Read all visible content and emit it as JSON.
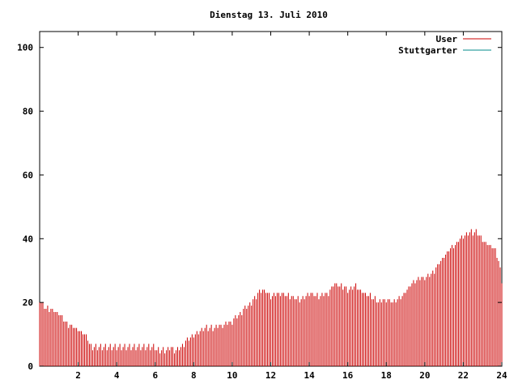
{
  "chart_data": {
    "type": "bar",
    "title": "Dienstag 13. Juli 2010",
    "xlabel": "",
    "ylabel": "",
    "xlim": [
      0,
      24
    ],
    "ylim": [
      0,
      105
    ],
    "x_ticks": [
      2,
      4,
      6,
      8,
      10,
      12,
      14,
      16,
      18,
      20,
      22,
      24
    ],
    "x_tick_labels": [
      "2",
      "4",
      "6",
      "8",
      "10",
      "12",
      "14",
      "16",
      "18",
      "20",
      "22",
      "24"
    ],
    "y_ticks": [
      0,
      20,
      40,
      60,
      80,
      100
    ],
    "y_tick_labels": [
      "0",
      "20",
      "40",
      "60",
      "80",
      "100"
    ],
    "grid": false,
    "legend_position": "top-right",
    "series": [
      {
        "name": "User",
        "color": "#cc0000",
        "profile": [
          [
            0.0,
            21
          ],
          [
            0.3,
            18
          ],
          [
            0.6,
            18
          ],
          [
            0.9,
            17
          ],
          [
            1.2,
            15
          ],
          [
            1.5,
            13
          ],
          [
            1.8,
            12
          ],
          [
            2.1,
            11
          ],
          [
            2.3,
            10
          ],
          [
            2.5,
            9
          ],
          [
            2.65,
            6
          ],
          [
            6.0,
            6
          ],
          [
            6.1,
            5
          ],
          [
            6.6,
            5
          ],
          [
            6.8,
            6
          ],
          [
            7.0,
            5
          ],
          [
            7.3,
            6
          ],
          [
            7.5,
            7
          ],
          [
            7.8,
            9
          ],
          [
            8.0,
            10
          ],
          [
            8.3,
            11
          ],
          [
            8.7,
            12
          ],
          [
            9.0,
            12
          ],
          [
            9.5,
            13
          ],
          [
            10.0,
            14
          ],
          [
            10.5,
            17
          ],
          [
            11.0,
            20
          ],
          [
            11.5,
            24
          ],
          [
            11.8,
            23
          ],
          [
            12.0,
            22
          ],
          [
            12.5,
            23
          ],
          [
            13.0,
            22
          ],
          [
            13.5,
            21
          ],
          [
            14.0,
            23
          ],
          [
            14.5,
            22
          ],
          [
            15.0,
            23
          ],
          [
            15.3,
            26
          ],
          [
            15.7,
            25
          ],
          [
            16.0,
            24
          ],
          [
            16.4,
            25
          ],
          [
            16.8,
            23
          ],
          [
            17.2,
            22
          ],
          [
            17.6,
            20
          ],
          [
            18.0,
            21
          ],
          [
            18.4,
            20
          ],
          [
            18.8,
            22
          ],
          [
            19.2,
            25
          ],
          [
            19.6,
            27
          ],
          [
            20.0,
            28
          ],
          [
            20.4,
            29
          ],
          [
            20.8,
            33
          ],
          [
            21.2,
            36
          ],
          [
            21.6,
            38
          ],
          [
            22.0,
            41
          ],
          [
            22.4,
            42
          ],
          [
            22.7,
            42
          ],
          [
            23.0,
            40
          ],
          [
            23.3,
            38
          ],
          [
            23.6,
            37
          ],
          [
            23.8,
            34
          ],
          [
            24.0,
            27
          ]
        ]
      },
      {
        "name": "Stuttgarter",
        "color": "#008b8b",
        "profile": []
      }
    ]
  }
}
